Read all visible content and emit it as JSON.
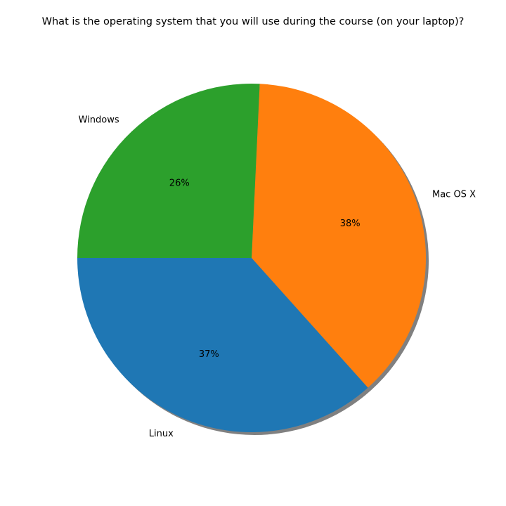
{
  "chart_data": {
    "type": "pie",
    "title": "What is the operating system that you will use during the course (on your laptop)?",
    "slices": [
      {
        "label": "Linux",
        "value": 37,
        "pct_label": "37%",
        "color": "#1f77b4"
      },
      {
        "label": "Mac OS X",
        "value": 38,
        "pct_label": "38%",
        "color": "#ff7f0e"
      },
      {
        "label": "Windows",
        "value": 26,
        "pct_label": "26%",
        "color": "#2ca02c"
      }
    ],
    "start_angle_deg": 180,
    "direction": "counterclockwise",
    "shadow": true
  }
}
